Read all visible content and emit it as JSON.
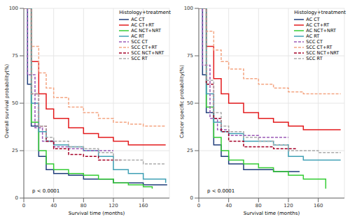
{
  "chart_data": [
    {
      "type": "step",
      "x_label": "Survival time (months)",
      "y_label": "Overall survival probability(%)",
      "xlim": [
        0,
        195
      ],
      "xticks": [
        0,
        40,
        80,
        120,
        160
      ],
      "ylim": [
        0,
        100
      ],
      "yticks": [
        0,
        25,
        50,
        75,
        100
      ],
      "grid": true,
      "legend": "top right",
      "legend_title": "Histology+treatment",
      "annotation": "p < 0.0001",
      "series": [
        {
          "name": "AC CT",
          "color": "#1f3d7a",
          "line_style": "solid",
          "x": [
            0,
            5,
            10,
            20,
            30,
            40,
            60,
            80,
            100,
            120,
            160,
            192
          ],
          "values": [
            100,
            60,
            38,
            22,
            15,
            13,
            12,
            10,
            10,
            8,
            7,
            7
          ]
        },
        {
          "name": "AC CT+RT",
          "color": "#e31a1c",
          "line_style": "solid",
          "x": [
            0,
            10,
            20,
            30,
            40,
            60,
            80,
            100,
            120,
            140,
            160,
            190
          ],
          "values": [
            100,
            72,
            55,
            47,
            42,
            37,
            34,
            32,
            30,
            28,
            28,
            28
          ]
        },
        {
          "name": "AC NCT+NRT",
          "color": "#33cc33",
          "line_style": "solid",
          "x": [
            0,
            10,
            20,
            30,
            40,
            60,
            80,
            100,
            120,
            140,
            160,
            172
          ],
          "values": [
            100,
            40,
            25,
            18,
            15,
            13,
            12,
            10,
            8,
            7,
            6,
            5
          ]
        },
        {
          "name": "AC RT",
          "color": "#3fa0b5",
          "line_style": "solid",
          "x": [
            0,
            10,
            20,
            30,
            40,
            60,
            80,
            100,
            120,
            140,
            160,
            190
          ],
          "values": [
            100,
            50,
            35,
            30,
            28,
            27,
            25,
            22,
            15,
            13,
            10,
            8
          ]
        },
        {
          "name": "SCC CT",
          "color": "#9b59b6",
          "line_style": "dashed",
          "x": [
            0,
            5,
            15,
            25,
            40,
            60,
            80,
            100,
            120
          ],
          "values": [
            100,
            65,
            37,
            30,
            27,
            26,
            25,
            25,
            25
          ]
        },
        {
          "name": "SCC CT+RT",
          "color": "#f4a582",
          "line_style": "dashed",
          "x": [
            0,
            10,
            20,
            30,
            40,
            60,
            80,
            100,
            120,
            140,
            160,
            190
          ],
          "values": [
            100,
            80,
            66,
            58,
            53,
            48,
            45,
            42,
            40,
            39,
            38,
            38
          ]
        },
        {
          "name": "SCC NCT+NRT",
          "color": "#a50026",
          "line_style": "dashed",
          "x": [
            0,
            10,
            20,
            30,
            40,
            60,
            80,
            100,
            130
          ],
          "values": [
            100,
            55,
            38,
            30,
            26,
            23,
            22,
            20,
            20
          ]
        },
        {
          "name": "SCC RT",
          "color": "#aaaaaa",
          "line_style": "dashed",
          "x": [
            0,
            10,
            20,
            30,
            40,
            60,
            80,
            100,
            120,
            160,
            190
          ],
          "values": [
            100,
            55,
            38,
            32,
            30,
            27,
            26,
            24,
            20,
            18,
            18
          ]
        }
      ]
    },
    {
      "type": "step",
      "x_label": "Survival time (months)",
      "y_label": "Cancer specific probability(%)",
      "xlim": [
        0,
        195
      ],
      "xticks": [
        0,
        40,
        80,
        120,
        160
      ],
      "ylim": [
        0,
        100
      ],
      "yticks": [
        0,
        25,
        50,
        75,
        100
      ],
      "grid": true,
      "legend": "top right",
      "legend_title": "Histology+treatment",
      "annotation": "p < 0.0001",
      "series": [
        {
          "name": "AC CT",
          "color": "#1f3d7a",
          "line_style": "solid",
          "x": [
            0,
            5,
            10,
            20,
            30,
            40,
            60,
            80,
            100,
            135
          ],
          "values": [
            100,
            65,
            45,
            28,
            22,
            18,
            15,
            15,
            14,
            14
          ]
        },
        {
          "name": "AC CT+RT",
          "color": "#e31a1c",
          "line_style": "solid",
          "x": [
            0,
            10,
            20,
            30,
            40,
            60,
            80,
            100,
            120,
            140,
            160,
            190
          ],
          "values": [
            100,
            80,
            63,
            55,
            50,
            45,
            42,
            40,
            38,
            36,
            36,
            36
          ]
        },
        {
          "name": "AC NCT+NRT",
          "color": "#33cc33",
          "line_style": "solid",
          "x": [
            0,
            10,
            20,
            30,
            40,
            60,
            80,
            100,
            120,
            140,
            170
          ],
          "values": [
            100,
            48,
            32,
            25,
            20,
            18,
            16,
            14,
            12,
            10,
            5
          ]
        },
        {
          "name": "AC RT",
          "color": "#3fa0b5",
          "line_style": "solid",
          "x": [
            0,
            10,
            20,
            30,
            40,
            60,
            80,
            100,
            120,
            140,
            160,
            190
          ],
          "values": [
            100,
            55,
            40,
            35,
            34,
            30,
            30,
            28,
            22,
            20,
            20,
            20
          ]
        },
        {
          "name": "SCC CT",
          "color": "#9b59b6",
          "line_style": "dashed",
          "x": [
            0,
            5,
            15,
            25,
            40,
            60,
            80,
            120
          ],
          "values": [
            100,
            70,
            42,
            36,
            33,
            33,
            32,
            32
          ]
        },
        {
          "name": "SCC CT+RT",
          "color": "#f4a582",
          "line_style": "dashed",
          "x": [
            0,
            10,
            20,
            30,
            40,
            60,
            80,
            100,
            120,
            140,
            160,
            190
          ],
          "values": [
            100,
            88,
            78,
            72,
            68,
            63,
            60,
            58,
            56,
            55,
            55,
            55
          ]
        },
        {
          "name": "SCC NCT+NRT",
          "color": "#a50026",
          "line_style": "dashed",
          "x": [
            0,
            10,
            20,
            30,
            40,
            60,
            80,
            100,
            130
          ],
          "values": [
            100,
            60,
            42,
            35,
            30,
            27,
            27,
            26,
            26
          ]
        },
        {
          "name": "SCC RT",
          "color": "#aaaaaa",
          "line_style": "dashed",
          "x": [
            0,
            10,
            20,
            30,
            40,
            60,
            80,
            100,
            120,
            160,
            190
          ],
          "values": [
            100,
            62,
            45,
            38,
            35,
            32,
            30,
            28,
            25,
            24,
            24
          ]
        }
      ]
    }
  ]
}
